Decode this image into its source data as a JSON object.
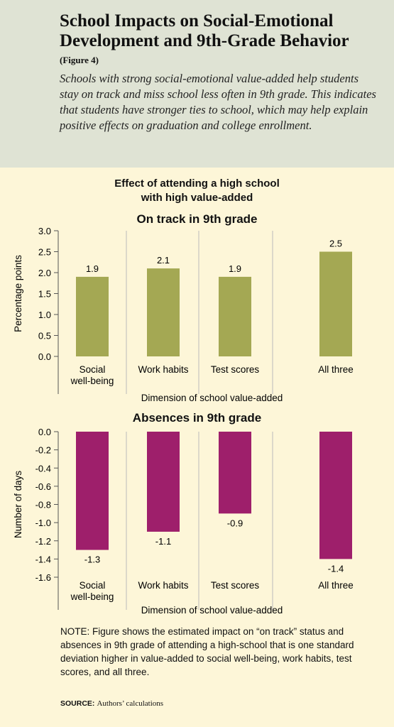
{
  "header": {
    "title_line1": "School Impacts on Social-Emotional",
    "title_line2": "Development and 9th-Grade Behavior",
    "figure_label": "(Figure 4)",
    "subtitle": "Schools with strong social-emotional value-added help students stay on track and miss school less often in 9th grade. This indicates that students have stronger ties to school, which may help explain positive effects on graduation and college enrollment."
  },
  "chart_heading_line1": "Effect of attending a high school",
  "chart_heading_line2": "with high value-added",
  "colors": {
    "on_track_bar": "#a4a853",
    "absences_bar": "#9e1f6b",
    "header_bg": "#dfe3d4",
    "body_bg": "#fdf6d8"
  },
  "chart_data": [
    {
      "type": "bar",
      "title": "On track in 9th grade",
      "categories": [
        "Social\nwell-being",
        "Work habits",
        "Test scores",
        "All three"
      ],
      "values": [
        1.9,
        2.1,
        1.9,
        2.5
      ],
      "value_labels": [
        "1.9",
        "2.1",
        "1.9",
        "2.5"
      ],
      "ylabel": "Percentage points",
      "xlabel": "Dimension of school value-added",
      "ylim": [
        0,
        3.0
      ],
      "yticks": [
        "0.0",
        "0.5",
        "1.0",
        "1.5",
        "2.0",
        "2.5",
        "3.0"
      ],
      "ytick_values": [
        0,
        0.5,
        1.0,
        1.5,
        2.0,
        2.5,
        3.0
      ]
    },
    {
      "type": "bar",
      "title": "Absences in 9th grade",
      "categories": [
        "Social\nwell-being",
        "Work habits",
        "Test scores",
        "All three"
      ],
      "values": [
        -1.3,
        -1.1,
        -0.9,
        -1.4
      ],
      "value_labels": [
        "-1.3",
        "-1.1",
        "-0.9",
        "-1.4"
      ],
      "ylabel": "Number of days",
      "xlabel": "Dimension of school value-added",
      "ylim": [
        -1.6,
        0.0
      ],
      "yticks": [
        "0.0",
        "-0.2",
        "-0.4",
        "-0.6",
        "-0.8",
        "-1.0",
        "-1.2",
        "-1.4",
        "-1.6"
      ],
      "ytick_values": [
        0,
        -0.2,
        -0.4,
        -0.6,
        -0.8,
        -1.0,
        -1.2,
        -1.4,
        -1.6
      ]
    }
  ],
  "note": "NOTE: Figure shows the estimated impact on “on track” status and absences in 9th grade of attending a high-school that is one standard deviation higher in value-added to social well-being, work habits, test scores, and all three.",
  "source_label": "SOURCE:",
  "source_text": "Authors’ calculations"
}
